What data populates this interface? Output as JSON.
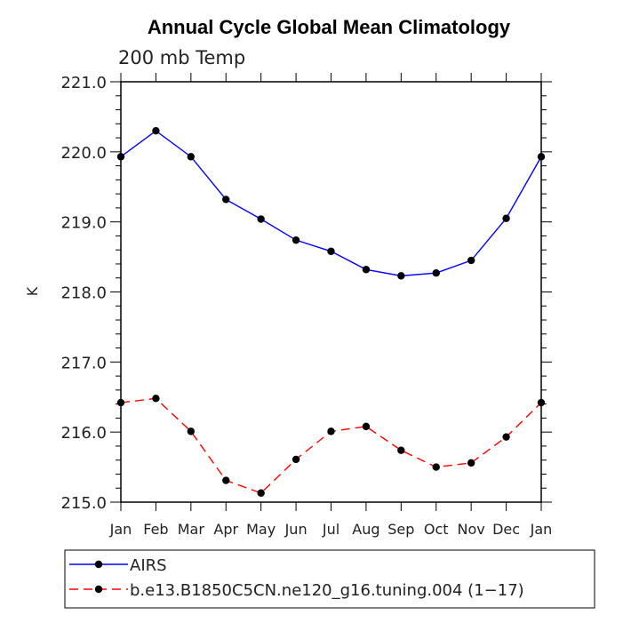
{
  "chart_data": {
    "type": "line",
    "title": "Annual Cycle Global Mean Climatology",
    "subtitle": "200 mb Temp",
    "xlabel": "",
    "ylabel": "K",
    "ylim": [
      215.0,
      221.0
    ],
    "yticks": [
      "215.0",
      "216.0",
      "217.0",
      "218.0",
      "219.0",
      "220.0",
      "221.0"
    ],
    "categories": [
      "Jan",
      "Feb",
      "Mar",
      "Apr",
      "May",
      "Jun",
      "Jul",
      "Aug",
      "Sep",
      "Oct",
      "Nov",
      "Dec",
      "Jan"
    ],
    "series": [
      {
        "name": "AIRS",
        "color": "#0000ff",
        "dash": "solid",
        "values": [
          219.93,
          220.3,
          219.93,
          219.32,
          219.04,
          218.74,
          218.58,
          218.32,
          218.23,
          218.27,
          218.45,
          219.05,
          219.93
        ]
      },
      {
        "name": "b.e13.B1850C5CN.ne120_g16.tuning.004 (1−17)",
        "color": "#ff0000",
        "dash": "dashed",
        "values": [
          216.42,
          216.48,
          216.01,
          215.31,
          215.13,
          215.61,
          216.01,
          216.08,
          215.74,
          215.5,
          215.56,
          215.93,
          216.42
        ]
      }
    ],
    "legend_position": "bottom-left"
  }
}
